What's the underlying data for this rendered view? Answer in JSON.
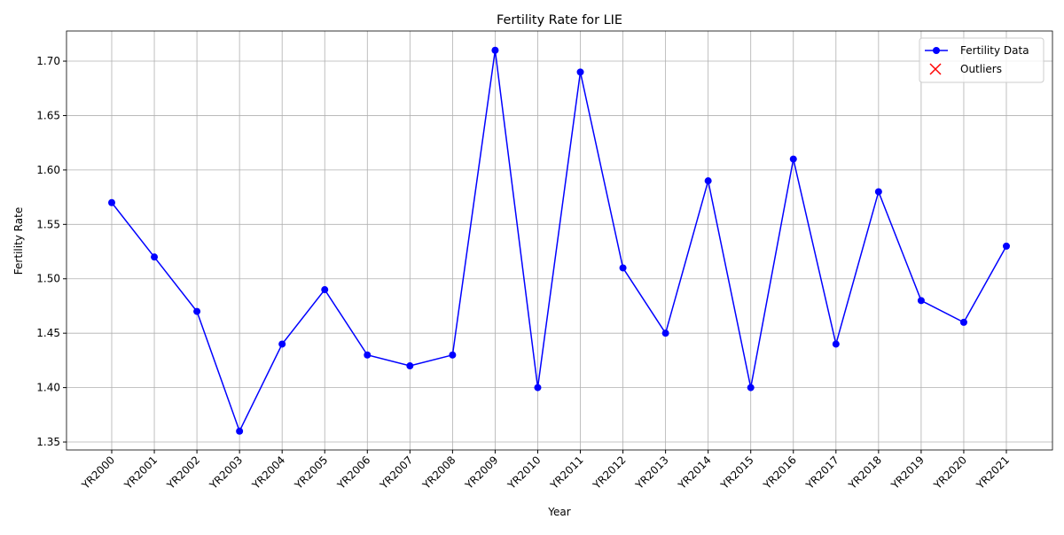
{
  "chart_data": {
    "type": "line",
    "title": "Fertility Rate for LIE",
    "xlabel": "Year",
    "ylabel": "Fertility Rate",
    "categories": [
      "YR2000",
      "YR2001",
      "YR2002",
      "YR2003",
      "YR2004",
      "YR2005",
      "YR2006",
      "YR2007",
      "YR2008",
      "YR2009",
      "YR2010",
      "YR2011",
      "YR2012",
      "YR2013",
      "YR2014",
      "YR2015",
      "YR2016",
      "YR2017",
      "YR2018",
      "YR2019",
      "YR2020",
      "YR2021"
    ],
    "series": [
      {
        "name": "Fertility Data",
        "color": "#0000ff",
        "marker": "o",
        "values": [
          1.57,
          1.52,
          1.47,
          1.36,
          1.44,
          1.49,
          1.43,
          1.42,
          1.43,
          1.71,
          1.4,
          1.69,
          1.51,
          1.45,
          1.59,
          1.4,
          1.61,
          1.44,
          1.58,
          1.48,
          1.46,
          1.53
        ]
      },
      {
        "name": "Outliers",
        "color": "#ff0000",
        "marker": "x",
        "values": [
          null,
          null,
          null,
          null,
          null,
          null,
          null,
          null,
          null,
          null,
          null,
          null,
          null,
          null,
          null,
          null,
          null,
          null,
          null,
          null,
          null,
          null
        ]
      }
    ],
    "ylim": [
      1.3427,
      1.7277
    ],
    "yticks": [
      1.35,
      {
        "value": 1.4,
        "label": "1.40"
      },
      1.45,
      {
        "value": 1.5,
        "label": "1.50"
      },
      1.55,
      {
        "value": 1.6,
        "label": "1.60"
      },
      1.65,
      {
        "value": 1.7,
        "label": "1.70"
      }
    ],
    "grid": true,
    "legend": "upper right"
  }
}
